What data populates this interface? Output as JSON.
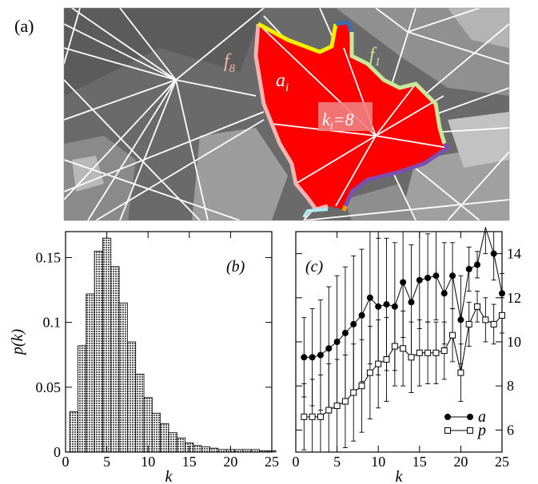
{
  "panel_a": {
    "label": "(a)",
    "labels": {
      "face": "a",
      "face_sub": "i",
      "degree": "k",
      "degree_sub": "i",
      "degree_val": "=8",
      "f8": "f",
      "f8_sub": "8",
      "f1": "f",
      "f1_sub": "1"
    },
    "colors": {
      "face": "#ff0000",
      "f8": "#f4b3b3",
      "f1": "#c9e89c",
      "f_yellow": "#f5f000",
      "f_blue": "#3c6ea8",
      "f_purple": "#7a4fb0",
      "f_cyan": "#b0eaf0",
      "bg_dark": "#5a5a5a",
      "bg_mid": "#8a8a8a",
      "bg_light": "#b8b8b8",
      "lines": "#ffffff"
    }
  },
  "chart_data": [
    {
      "type": "bar",
      "panel_label": "(b)",
      "xlabel": "k",
      "ylabel": "p(k)",
      "xlim": [
        0,
        25
      ],
      "ylim": [
        0,
        0.17
      ],
      "xticks": [
        "0",
        "5",
        "10",
        "15",
        "20",
        "25"
      ],
      "yticks": [
        "0",
        "0.05",
        "0.1",
        "0.15"
      ],
      "categories": [
        1,
        2,
        3,
        4,
        5,
        6,
        7,
        8,
        9,
        10,
        11,
        12,
        13,
        14,
        15,
        16,
        17,
        18,
        19,
        20,
        21,
        22,
        23,
        24,
        25
      ],
      "values": [
        0.031,
        0.082,
        0.122,
        0.155,
        0.165,
        0.143,
        0.115,
        0.085,
        0.06,
        0.042,
        0.03,
        0.022,
        0.015,
        0.011,
        0.007,
        0.005,
        0.004,
        0.003,
        0.002,
        0.002,
        0.002,
        0.002,
        0.002,
        0.001,
        0.001
      ]
    },
    {
      "type": "line",
      "panel_label": "(c)",
      "xlabel": "k",
      "xlim": [
        0,
        25
      ],
      "ylim": [
        5,
        15
      ],
      "xticks": [
        "0",
        "5",
        "10",
        "15",
        "20",
        "25"
      ],
      "yticks": [
        "6",
        "8",
        "10",
        "12",
        "14"
      ],
      "x": [
        1,
        2,
        3,
        4,
        5,
        6,
        7,
        8,
        9,
        10,
        11,
        12,
        13,
        14,
        15,
        16,
        17,
        18,
        19,
        20,
        21,
        22,
        23,
        24,
        25
      ],
      "legend_position": "bottom-right",
      "series": [
        {
          "name": "a",
          "marker": "filled-circle",
          "values": [
            9.3,
            9.3,
            9.4,
            9.7,
            10.0,
            10.4,
            10.8,
            11.2,
            12.0,
            11.6,
            11.7,
            11.6,
            12.7,
            11.8,
            12.8,
            12.9,
            13.0,
            12.2,
            13.0,
            11.0,
            13.3,
            13.5,
            15.5,
            14.0,
            12.2
          ],
          "err": [
            1.8,
            2.2,
            2.5,
            2.8,
            3.0,
            3.0,
            3.1,
            3.0,
            3.0,
            3.1,
            3.0,
            2.9,
            2.5,
            2.6,
            2.2,
            2.0,
            2.0,
            2.3,
            1.5,
            2.0,
            1.0,
            0.6,
            1.5,
            1.2,
            0.9
          ]
        },
        {
          "name": "p",
          "marker": "open-square",
          "values": [
            6.6,
            6.6,
            6.6,
            6.9,
            7.1,
            7.3,
            7.7,
            8.0,
            8.6,
            9.0,
            9.2,
            9.8,
            9.7,
            9.3,
            9.5,
            9.5,
            9.5,
            9.6,
            10.3,
            8.6,
            10.8,
            11.6,
            11.0,
            10.8,
            11.2
          ],
          "err": [
            1.5,
            1.7,
            1.9,
            2.1,
            2.1,
            2.1,
            2.2,
            2.1,
            2.1,
            2.0,
            1.9,
            1.8,
            1.7,
            1.6,
            1.5,
            1.4,
            1.4,
            1.3,
            1.2,
            1.3,
            1.0,
            0.7,
            1.0,
            0.9,
            0.8
          ]
        }
      ]
    }
  ]
}
